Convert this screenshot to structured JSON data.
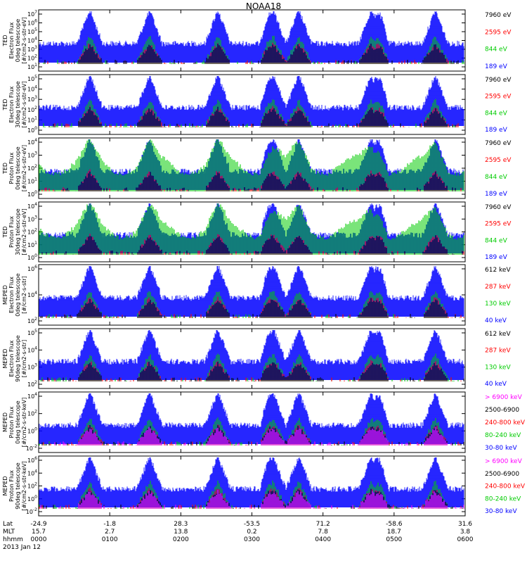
{
  "chart_data": {
    "type": "line",
    "title": "NOAA18",
    "footer": {
      "row_labels": [
        "Lat",
        "MLT",
        "hhmm",
        "2013 Jan 12"
      ],
      "lat": [
        "-24.9",
        "-1.8",
        "28.3",
        "-53.5",
        "71.2",
        "-58.6",
        "31.6"
      ],
      "mlt": [
        "15.7",
        "2.7",
        "13.8",
        "0.2",
        "7.8",
        "18.7",
        "3.8"
      ],
      "hhmm": [
        "0000",
        "0100",
        "0200",
        "0300",
        "0400",
        "0500",
        "0600"
      ]
    },
    "panels": [
      {
        "ylabel": [
          "TED",
          "Electron Flux",
          "0deg telescope",
          "[#/cm2-s-str-eV]"
        ],
        "ytick_labels": [
          "10^1",
          "10^2",
          "10^3",
          "10^4",
          "10^5",
          "10^6",
          "10^7"
        ],
        "ylim": [
          1,
          7
        ],
        "legend": [
          {
            "label": "7960 eV",
            "color": "#000000"
          },
          {
            "label": "2595 eV",
            "color": "#ff0000"
          },
          {
            "label": "844 eV",
            "color": "#00cc00"
          },
          {
            "label": "189 eV",
            "color": "#0000ff"
          }
        ]
      },
      {
        "ylabel": [
          "TED",
          "Electron Flux",
          "30deg telescope",
          "[#/cm2-s-str-eV]"
        ],
        "ytick_labels": [
          "10^0",
          "10^1",
          "10^2",
          "10^3",
          "10^4",
          "10^5"
        ],
        "ylim": [
          0,
          5.5
        ],
        "legend": [
          {
            "label": "7960 eV",
            "color": "#000000"
          },
          {
            "label": "2595 eV",
            "color": "#ff0000"
          },
          {
            "label": "844 eV",
            "color": "#00cc00"
          },
          {
            "label": "189 eV",
            "color": "#0000ff"
          }
        ]
      },
      {
        "ylabel": [
          "TED",
          "Proton Flux",
          "0deg telescope",
          "[#/cm2-s-str-eV]"
        ],
        "ytick_labels": [
          "10^0",
          "10^1",
          "10^2",
          "10^3",
          "10^4"
        ],
        "ylim": [
          0,
          4.5
        ],
        "legend": [
          {
            "label": "7960 eV",
            "color": "#000000"
          },
          {
            "label": "2595 eV",
            "color": "#ff0000"
          },
          {
            "label": "844 eV",
            "color": "#00cc00"
          },
          {
            "label": "189 eV",
            "color": "#0000ff"
          }
        ]
      },
      {
        "ylabel": [
          "TED",
          "Proton Flux",
          "30deg telescope",
          "[#/cm2-s-str-eV]"
        ],
        "ytick_labels": [
          "10^0",
          "10^1",
          "10^2",
          "10^3",
          "10^4"
        ],
        "ylim": [
          0,
          4.5
        ],
        "legend": [
          {
            "label": "7960 eV",
            "color": "#000000"
          },
          {
            "label": "2595 eV",
            "color": "#ff0000"
          },
          {
            "label": "844 eV",
            "color": "#00cc00"
          },
          {
            "label": "189 eV",
            "color": "#0000ff"
          }
        ]
      },
      {
        "ylabel": [
          "MEPED",
          "Electron Flux",
          "0deg telescope",
          "[#/cm2-s-str]"
        ],
        "ytick_labels": [
          "10^2",
          "10^4",
          "10^6"
        ],
        "ylim": [
          1.2,
          7
        ],
        "legend": [
          {
            "label": "612 keV",
            "color": "#000000"
          },
          {
            "label": "287 keV",
            "color": "#ff0000"
          },
          {
            "label": "130 keV",
            "color": "#00cc00"
          },
          {
            "label": "40 keV",
            "color": "#0000ff"
          }
        ]
      },
      {
        "ylabel": [
          "MEPED",
          "Electron Flux",
          "90deg telescope",
          "[#/cm2-s-str]"
        ],
        "ytick_labels": [
          "10^2",
          "10^3",
          "10^4",
          "10^5"
        ],
        "ylim": [
          1.5,
          5.6
        ],
        "legend": [
          {
            "label": "612 keV",
            "color": "#000000"
          },
          {
            "label": "287 keV",
            "color": "#ff0000"
          },
          {
            "label": "130 keV",
            "color": "#00cc00"
          },
          {
            "label": "40 keV",
            "color": "#0000ff"
          }
        ]
      },
      {
        "ylabel": [
          "MEPED",
          "Proton Flux",
          "0deg telescope",
          "[#/cm2-s-str-keV]"
        ],
        "ytick_labels": [
          "10^-2",
          "10^0",
          "10^2",
          "10^4"
        ],
        "ylim": [
          -3,
          5.4
        ],
        "legend": [
          {
            "label": "> 6900 keV",
            "color": "#ff00ff"
          },
          {
            "label": "2500-6900",
            "color": "#000000"
          },
          {
            "label": "240-800 keV",
            "color": "#ff0000"
          },
          {
            "label": "80-240 keV",
            "color": "#00cc00"
          },
          {
            "label": "30-80 keV",
            "color": "#0000ff"
          }
        ]
      },
      {
        "ylabel": [
          "MEPED",
          "Proton Flux",
          "90deg telescope",
          "[#/cm2-s-str-keV]"
        ],
        "ytick_labels": [
          "10^-2",
          "10^0",
          "10^2",
          "10^4",
          "10^6"
        ],
        "ylim": [
          -3,
          7
        ],
        "legend": [
          {
            "label": "> 6900 keV",
            "color": "#ff00ff"
          },
          {
            "label": "2500-6900",
            "color": "#000000"
          },
          {
            "label": "240-800 keV",
            "color": "#ff0000"
          },
          {
            "label": "80-240 keV",
            "color": "#00cc00"
          },
          {
            "label": "30-80 keV",
            "color": "#0000ff"
          }
        ]
      }
    ]
  }
}
